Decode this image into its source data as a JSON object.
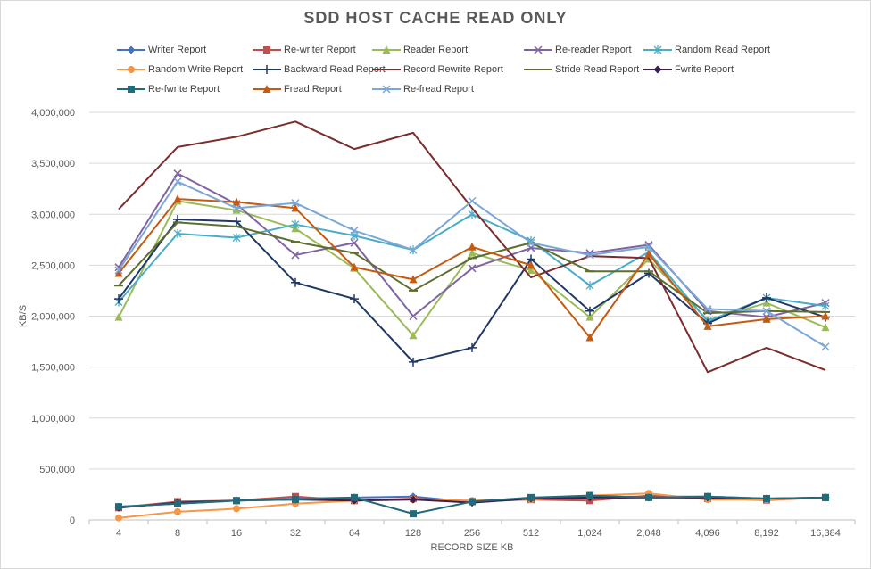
{
  "chart_data": {
    "type": "line",
    "title": "SDD HOST CACHE READ ONLY",
    "xlabel": "RECORD SIZE KB",
    "ylabel": "KB/S",
    "ylim": [
      0,
      4000000
    ],
    "yticks": [
      0,
      500000,
      1000000,
      1500000,
      2000000,
      2500000,
      3000000,
      3500000,
      4000000
    ],
    "ytick_labels": [
      "0",
      "500,000",
      "1,000,000",
      "1,500,000",
      "2,000,000",
      "2,500,000",
      "3,000,000",
      "3,500,000",
      "4,000,000"
    ],
    "grid": "horizontal",
    "legend_position": "top",
    "categories": [
      "4",
      "8",
      "16",
      "32",
      "64",
      "128",
      "256",
      "512",
      "1,024",
      "2,048",
      "4,096",
      "8,192",
      "16,384"
    ],
    "series": [
      {
        "name": "Writer Report",
        "color": "#4472C4",
        "marker": "diamond",
        "values": [
          130000,
          160000,
          190000,
          210000,
          220000,
          230000,
          175000,
          210000,
          225000,
          230000,
          230000,
          210000,
          220000
        ]
      },
      {
        "name": "Re-writer Report",
        "color": "#C0504D",
        "marker": "square",
        "values": [
          120000,
          180000,
          190000,
          230000,
          190000,
          210000,
          180000,
          200000,
          190000,
          240000,
          210000,
          195000,
          220000
        ]
      },
      {
        "name": "Reader Report",
        "color": "#9BBB59",
        "marker": "triangle",
        "values": [
          1990000,
          3130000,
          3040000,
          2860000,
          2470000,
          1810000,
          2620000,
          2450000,
          1990000,
          2560000,
          1960000,
          2130000,
          1890000
        ]
      },
      {
        "name": "Re-reader Report",
        "color": "#8064A2",
        "marker": "x",
        "values": [
          2480000,
          3400000,
          3100000,
          2600000,
          2720000,
          2000000,
          2470000,
          2670000,
          2620000,
          2700000,
          2050000,
          1990000,
          2130000
        ]
      },
      {
        "name": "Random Read Report",
        "color": "#4BACC6",
        "marker": "star",
        "values": [
          2140000,
          2810000,
          2770000,
          2900000,
          2790000,
          2650000,
          3000000,
          2740000,
          2300000,
          2630000,
          1950000,
          2180000,
          2100000
        ]
      },
      {
        "name": "Random Write Report",
        "color": "#F79646",
        "marker": "circle",
        "values": [
          20000,
          80000,
          110000,
          160000,
          190000,
          200000,
          190000,
          200000,
          240000,
          260000,
          200000,
          200000,
          220000
        ]
      },
      {
        "name": "Backward Read Report",
        "color": "#1F3864",
        "marker": "plus",
        "values": [
          2170000,
          2950000,
          2930000,
          2330000,
          2170000,
          1550000,
          1690000,
          2560000,
          2050000,
          2420000,
          1930000,
          2180000,
          1990000
        ]
      },
      {
        "name": "Record Rewrite Report",
        "color": "#7B2C2C",
        "marker": "none",
        "values": [
          3050000,
          3660000,
          3760000,
          3910000,
          3640000,
          3800000,
          3060000,
          2380000,
          2590000,
          2570000,
          1450000,
          1690000,
          1470000
        ]
      },
      {
        "name": "Stride Read Report",
        "color": "#5E6E2E",
        "marker": "dash",
        "values": [
          2300000,
          2920000,
          2880000,
          2730000,
          2620000,
          2250000,
          2570000,
          2720000,
          2440000,
          2440000,
          2030000,
          2050000,
          2040000
        ]
      },
      {
        "name": "Fwrite Report",
        "color": "#3A2050",
        "marker": "diamond",
        "values": [
          120000,
          170000,
          190000,
          200000,
          190000,
          200000,
          170000,
          210000,
          220000,
          220000,
          220000,
          210000,
          220000
        ]
      },
      {
        "name": "Re-fwrite Report",
        "color": "#236A7A",
        "marker": "square",
        "values": [
          130000,
          160000,
          190000,
          200000,
          220000,
          60000,
          180000,
          220000,
          240000,
          220000,
          230000,
          210000,
          220000
        ]
      },
      {
        "name": "Fread Report",
        "color": "#C55A11",
        "marker": "triangle",
        "values": [
          2420000,
          3150000,
          3120000,
          3060000,
          2480000,
          2360000,
          2680000,
          2500000,
          1790000,
          2610000,
          1900000,
          1970000,
          2000000
        ]
      },
      {
        "name": "Re-fread Report",
        "color": "#7BA7D6",
        "marker": "x",
        "values": [
          2450000,
          3320000,
          3060000,
          3110000,
          2840000,
          2650000,
          3130000,
          2720000,
          2600000,
          2680000,
          2070000,
          2050000,
          1700000
        ]
      }
    ]
  }
}
